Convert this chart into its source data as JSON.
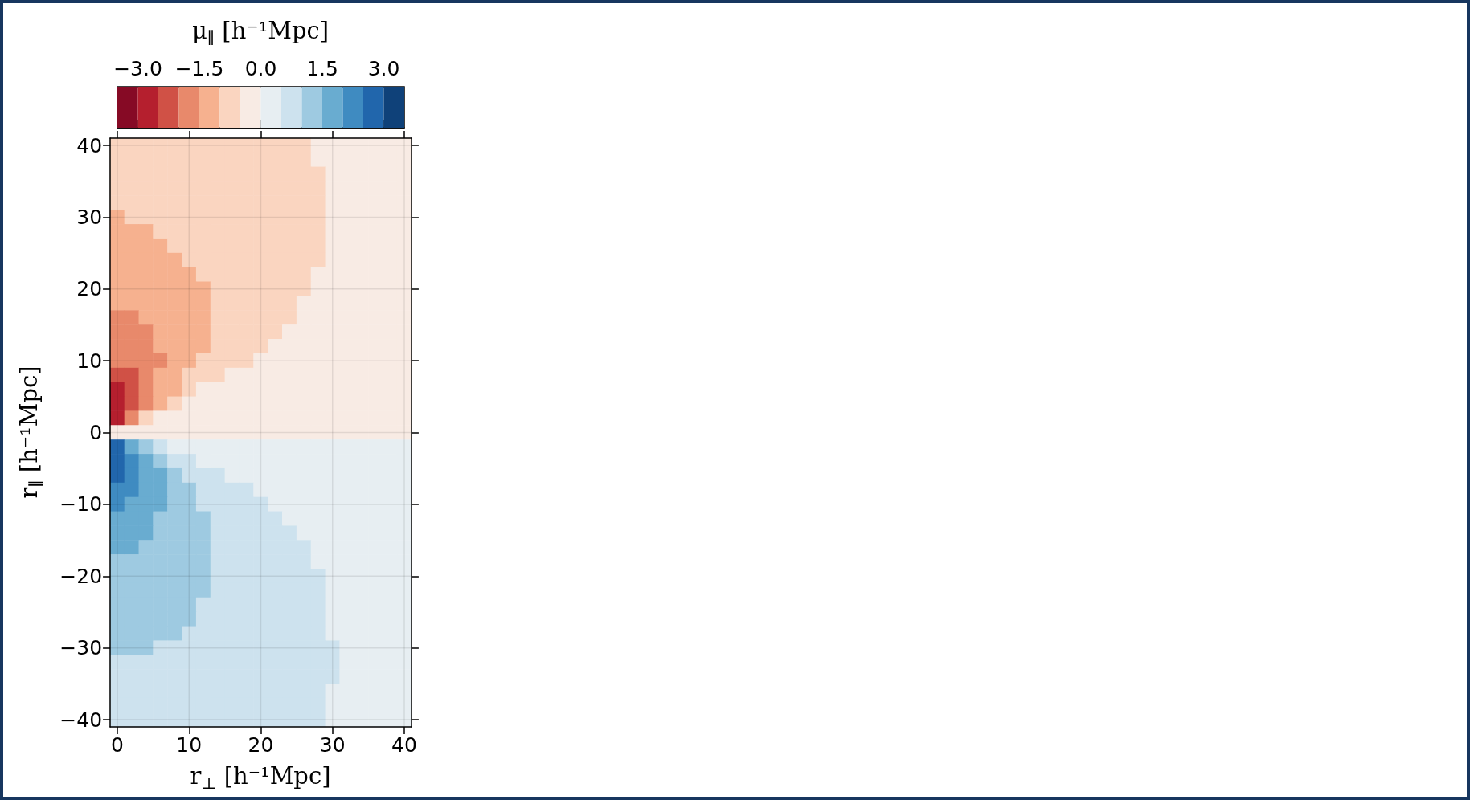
{
  "chart_data": {
    "type": "heatmap",
    "xlabel": "r$_{⊥}$ [h⁻¹Mpc]",
    "ylabel": "r$_{∥}$ [h⁻¹Mpc]",
    "clabel": "μ$_{∥}$ [h⁻¹Mpc]",
    "categories": [
      "0",
      null,
      null,
      null,
      null,
      "10",
      null,
      null,
      null,
      null,
      "20",
      null,
      null,
      null,
      null,
      "30",
      null,
      null,
      null,
      null,
      "40"
    ],
    "y_categories": [
      "40",
      null,
      null,
      null,
      null,
      "30",
      null,
      null,
      null,
      null,
      "20",
      null,
      null,
      null,
      null,
      "10",
      null,
      null,
      null,
      null,
      "0",
      null,
      null,
      null,
      null,
      "−10",
      null,
      null,
      null,
      null,
      "−20",
      null,
      null,
      null,
      null,
      "−30",
      null,
      null,
      null,
      null,
      "−40"
    ],
    "clim": [
      -3.5,
      3.5
    ],
    "cticks": [
      {
        "value": -3,
        "label": "−3.0"
      },
      {
        "value": -1.5,
        "label": "−1.5"
      },
      {
        "value": 0,
        "label": "0.0"
      },
      {
        "value": 1.5,
        "label": "1.5"
      },
      {
        "value": 3,
        "label": "3.0"
      }
    ],
    "colors": [
      "#860a25",
      "#b51f2e",
      "#d05146",
      "#e8896b",
      "#f6b18f",
      "#fad5c0",
      "#f8ebe4",
      "#e7eef2",
      "#cde2ee",
      "#9ecae1",
      "#69acd0",
      "#3f8bc1",
      "#2166ac",
      "#0f4179"
    ],
    "grid": true,
    "cells": [
      [
        -0.75,
        -0.75,
        -0.75,
        -0.75,
        -0.75,
        -0.75,
        -0.75,
        -0.75,
        -0.75,
        -0.75,
        -0.75,
        -0.75,
        -0.75,
        -0.75,
        -0.25,
        -0.25,
        -0.25,
        -0.25,
        -0.25,
        -0.25,
        -0.25
      ],
      [
        -0.75,
        -0.75,
        -0.75,
        -0.75,
        -0.75,
        -0.75,
        -0.75,
        -0.75,
        -0.75,
        -0.75,
        -0.75,
        -0.75,
        -0.75,
        -0.75,
        -0.25,
        -0.25,
        -0.25,
        -0.25,
        -0.25,
        -0.25,
        -0.25
      ],
      [
        -0.75,
        -0.75,
        -0.75,
        -0.75,
        -0.75,
        -0.75,
        -0.75,
        -0.75,
        -0.75,
        -0.75,
        -0.75,
        -0.75,
        -0.75,
        -0.75,
        -0.75,
        -0.25,
        -0.25,
        -0.25,
        -0.25,
        -0.25,
        -0.25
      ],
      [
        -0.75,
        -0.75,
        -0.75,
        -0.75,
        -0.75,
        -0.75,
        -0.75,
        -0.75,
        -0.75,
        -0.75,
        -0.75,
        -0.75,
        -0.75,
        -0.75,
        -0.75,
        -0.25,
        -0.25,
        -0.25,
        -0.25,
        -0.25,
        -0.25
      ],
      [
        -0.75,
        -0.75,
        -0.75,
        -0.75,
        -0.75,
        -0.75,
        -0.75,
        -0.75,
        -0.75,
        -0.75,
        -0.75,
        -0.75,
        -0.75,
        -0.75,
        -0.75,
        -0.25,
        -0.25,
        -0.25,
        -0.25,
        -0.25,
        -0.25
      ],
      [
        -1.25,
        -0.75,
        -0.75,
        -0.75,
        -0.75,
        -0.75,
        -0.75,
        -0.75,
        -0.75,
        -0.75,
        -0.75,
        -0.75,
        -0.75,
        -0.75,
        -0.75,
        -0.25,
        -0.25,
        -0.25,
        -0.25,
        -0.25,
        -0.25
      ],
      [
        -1.25,
        -1.25,
        -1.25,
        -0.75,
        -0.75,
        -0.75,
        -0.75,
        -0.75,
        -0.75,
        -0.75,
        -0.75,
        -0.75,
        -0.75,
        -0.75,
        -0.75,
        -0.25,
        -0.25,
        -0.25,
        -0.25,
        -0.25,
        -0.25
      ],
      [
        -1.25,
        -1.25,
        -1.25,
        -1.25,
        -0.75,
        -0.75,
        -0.75,
        -0.75,
        -0.75,
        -0.75,
        -0.75,
        -0.75,
        -0.75,
        -0.75,
        -0.75,
        -0.25,
        -0.25,
        -0.25,
        -0.25,
        -0.25,
        -0.25
      ],
      [
        -1.25,
        -1.25,
        -1.25,
        -1.25,
        -1.25,
        -0.75,
        -0.75,
        -0.75,
        -0.75,
        -0.75,
        -0.75,
        -0.75,
        -0.75,
        -0.75,
        -0.75,
        -0.25,
        -0.25,
        -0.25,
        -0.25,
        -0.25,
        -0.25
      ],
      [
        -1.25,
        -1.25,
        -1.25,
        -1.25,
        -1.25,
        -1.25,
        -0.75,
        -0.75,
        -0.75,
        -0.75,
        -0.75,
        -0.75,
        -0.75,
        -0.75,
        -0.25,
        -0.25,
        -0.25,
        -0.25,
        -0.25,
        -0.25,
        -0.25
      ],
      [
        -1.25,
        -1.25,
        -1.25,
        -1.25,
        -1.25,
        -1.25,
        -1.25,
        -0.75,
        -0.75,
        -0.75,
        -0.75,
        -0.75,
        -0.75,
        -0.75,
        -0.25,
        -0.25,
        -0.25,
        -0.25,
        -0.25,
        -0.25,
        -0.25
      ],
      [
        -1.25,
        -1.25,
        -1.25,
        -1.25,
        -1.25,
        -1.25,
        -1.25,
        -0.75,
        -0.75,
        -0.75,
        -0.75,
        -0.75,
        -0.75,
        -0.25,
        -0.25,
        -0.25,
        -0.25,
        -0.25,
        -0.25,
        -0.25,
        -0.25
      ],
      [
        -1.75,
        -1.75,
        -1.25,
        -1.25,
        -1.25,
        -1.25,
        -1.25,
        -0.75,
        -0.75,
        -0.75,
        -0.75,
        -0.75,
        -0.75,
        -0.25,
        -0.25,
        -0.25,
        -0.25,
        -0.25,
        -0.25,
        -0.25,
        -0.25
      ],
      [
        -1.75,
        -1.75,
        -1.75,
        -1.25,
        -1.25,
        -1.25,
        -1.25,
        -0.75,
        -0.75,
        -0.75,
        -0.75,
        -0.75,
        -0.25,
        -0.25,
        -0.25,
        -0.25,
        -0.25,
        -0.25,
        -0.25,
        -0.25,
        -0.25
      ],
      [
        -1.75,
        -1.75,
        -1.75,
        -1.25,
        -1.25,
        -1.25,
        -1.25,
        -0.75,
        -0.75,
        -0.75,
        -0.75,
        -0.25,
        -0.25,
        -0.25,
        -0.25,
        -0.25,
        -0.25,
        -0.25,
        -0.25,
        -0.25,
        -0.25
      ],
      [
        -1.75,
        -1.75,
        -1.75,
        -1.75,
        -1.25,
        -1.25,
        -0.75,
        -0.75,
        -0.75,
        -0.75,
        -0.25,
        -0.25,
        -0.25,
        -0.25,
        -0.25,
        -0.25,
        -0.25,
        -0.25,
        -0.25,
        -0.25,
        -0.25
      ],
      [
        -2.25,
        -2.25,
        -1.75,
        -1.25,
        -1.25,
        -0.75,
        -0.75,
        -0.75,
        -0.25,
        -0.25,
        -0.25,
        -0.25,
        -0.25,
        -0.25,
        -0.25,
        -0.25,
        -0.25,
        -0.25,
        -0.25,
        -0.25,
        -0.25
      ],
      [
        -2.75,
        -2.25,
        -1.75,
        -1.25,
        -1.25,
        -0.75,
        -0.25,
        -0.25,
        -0.25,
        -0.25,
        -0.25,
        -0.25,
        -0.25,
        -0.25,
        -0.25,
        -0.25,
        -0.25,
        -0.25,
        -0.25,
        -0.25,
        -0.25
      ],
      [
        -2.75,
        -2.25,
        -1.75,
        -1.25,
        -0.75,
        -0.25,
        -0.25,
        -0.25,
        -0.25,
        -0.25,
        -0.25,
        -0.25,
        -0.25,
        -0.25,
        -0.25,
        -0.25,
        -0.25,
        -0.25,
        -0.25,
        -0.25,
        -0.25
      ],
      [
        -2.75,
        -1.75,
        -0.75,
        -0.25,
        -0.25,
        -0.25,
        -0.25,
        -0.25,
        -0.25,
        -0.25,
        -0.25,
        -0.25,
        -0.25,
        -0.25,
        -0.25,
        -0.25,
        -0.25,
        -0.25,
        -0.25,
        -0.25,
        -0.25
      ],
      [
        -0.25,
        -0.25,
        -0.25,
        -0.25,
        -0.25,
        -0.25,
        -0.25,
        -0.25,
        -0.25,
        -0.25,
        -0.25,
        -0.25,
        -0.25,
        -0.25,
        -0.25,
        -0.25,
        -0.25,
        -0.25,
        -0.25,
        -0.25,
        -0.25
      ],
      [
        2.75,
        1.75,
        1.25,
        0.75,
        0.25,
        0.25,
        0.25,
        0.25,
        0.25,
        0.25,
        0.25,
        0.25,
        0.25,
        0.25,
        0.25,
        0.25,
        0.25,
        0.25,
        0.25,
        0.25,
        0.25
      ],
      [
        2.75,
        2.25,
        1.75,
        1.25,
        0.75,
        0.75,
        0.25,
        0.25,
        0.25,
        0.25,
        0.25,
        0.25,
        0.25,
        0.25,
        0.25,
        0.25,
        0.25,
        0.25,
        0.25,
        0.25,
        0.25
      ],
      [
        2.75,
        2.25,
        1.75,
        1.75,
        1.25,
        0.75,
        0.75,
        0.75,
        0.25,
        0.25,
        0.25,
        0.25,
        0.25,
        0.25,
        0.25,
        0.25,
        0.25,
        0.25,
        0.25,
        0.25,
        0.25
      ],
      [
        2.25,
        2.25,
        1.75,
        1.75,
        1.25,
        1.25,
        0.75,
        0.75,
        0.75,
        0.75,
        0.25,
        0.25,
        0.25,
        0.25,
        0.25,
        0.25,
        0.25,
        0.25,
        0.25,
        0.25,
        0.25
      ],
      [
        2.25,
        1.75,
        1.75,
        1.75,
        1.25,
        1.25,
        0.75,
        0.75,
        0.75,
        0.75,
        0.75,
        0.25,
        0.25,
        0.25,
        0.25,
        0.25,
        0.25,
        0.25,
        0.25,
        0.25,
        0.25
      ],
      [
        1.75,
        1.75,
        1.75,
        1.25,
        1.25,
        1.25,
        1.25,
        0.75,
        0.75,
        0.75,
        0.75,
        0.75,
        0.25,
        0.25,
        0.25,
        0.25,
        0.25,
        0.25,
        0.25,
        0.25,
        0.25
      ],
      [
        1.75,
        1.75,
        1.75,
        1.25,
        1.25,
        1.25,
        1.25,
        0.75,
        0.75,
        0.75,
        0.75,
        0.75,
        0.75,
        0.25,
        0.25,
        0.25,
        0.25,
        0.25,
        0.25,
        0.25,
        0.25
      ],
      [
        1.75,
        1.75,
        1.25,
        1.25,
        1.25,
        1.25,
        1.25,
        0.75,
        0.75,
        0.75,
        0.75,
        0.75,
        0.75,
        0.75,
        0.25,
        0.25,
        0.25,
        0.25,
        0.25,
        0.25,
        0.25
      ],
      [
        1.25,
        1.25,
        1.25,
        1.25,
        1.25,
        1.25,
        1.25,
        0.75,
        0.75,
        0.75,
        0.75,
        0.75,
        0.75,
        0.75,
        0.25,
        0.25,
        0.25,
        0.25,
        0.25,
        0.25,
        0.25
      ],
      [
        1.25,
        1.25,
        1.25,
        1.25,
        1.25,
        1.25,
        1.25,
        0.75,
        0.75,
        0.75,
        0.75,
        0.75,
        0.75,
        0.75,
        0.75,
        0.25,
        0.25,
        0.25,
        0.25,
        0.25,
        0.25
      ],
      [
        1.25,
        1.25,
        1.25,
        1.25,
        1.25,
        1.25,
        1.25,
        0.75,
        0.75,
        0.75,
        0.75,
        0.75,
        0.75,
        0.75,
        0.75,
        0.25,
        0.25,
        0.25,
        0.25,
        0.25,
        0.25
      ],
      [
        1.25,
        1.25,
        1.25,
        1.25,
        1.25,
        1.25,
        0.75,
        0.75,
        0.75,
        0.75,
        0.75,
        0.75,
        0.75,
        0.75,
        0.75,
        0.25,
        0.25,
        0.25,
        0.25,
        0.25,
        0.25
      ],
      [
        1.25,
        1.25,
        1.25,
        1.25,
        1.25,
        1.25,
        0.75,
        0.75,
        0.75,
        0.75,
        0.75,
        0.75,
        0.75,
        0.75,
        0.75,
        0.25,
        0.25,
        0.25,
        0.25,
        0.25,
        0.25
      ],
      [
        1.25,
        1.25,
        1.25,
        1.25,
        1.25,
        0.75,
        0.75,
        0.75,
        0.75,
        0.75,
        0.75,
        0.75,
        0.75,
        0.75,
        0.75,
        0.25,
        0.25,
        0.25,
        0.25,
        0.25,
        0.25
      ],
      [
        1.25,
        1.25,
        1.25,
        0.75,
        0.75,
        0.75,
        0.75,
        0.75,
        0.75,
        0.75,
        0.75,
        0.75,
        0.75,
        0.75,
        0.75,
        0.75,
        0.25,
        0.25,
        0.25,
        0.25,
        0.25
      ],
      [
        0.75,
        0.75,
        0.75,
        0.75,
        0.75,
        0.75,
        0.75,
        0.75,
        0.75,
        0.75,
        0.75,
        0.75,
        0.75,
        0.75,
        0.75,
        0.75,
        0.25,
        0.25,
        0.25,
        0.25,
        0.25
      ],
      [
        0.75,
        0.75,
        0.75,
        0.75,
        0.75,
        0.75,
        0.75,
        0.75,
        0.75,
        0.75,
        0.75,
        0.75,
        0.75,
        0.75,
        0.75,
        0.75,
        0.25,
        0.25,
        0.25,
        0.25,
        0.25
      ],
      [
        0.75,
        0.75,
        0.75,
        0.75,
        0.75,
        0.75,
        0.75,
        0.75,
        0.75,
        0.75,
        0.75,
        0.75,
        0.75,
        0.75,
        0.75,
        0.25,
        0.25,
        0.25,
        0.25,
        0.25,
        0.25
      ],
      [
        0.75,
        0.75,
        0.75,
        0.75,
        0.75,
        0.75,
        0.75,
        0.75,
        0.75,
        0.75,
        0.75,
        0.75,
        0.75,
        0.75,
        0.75,
        0.25,
        0.25,
        0.25,
        0.25,
        0.25,
        0.25
      ],
      [
        0.75,
        0.75,
        0.75,
        0.75,
        0.75,
        0.75,
        0.75,
        0.75,
        0.75,
        0.75,
        0.75,
        0.75,
        0.75,
        0.75,
        0.75,
        0.25,
        0.25,
        0.25,
        0.25,
        0.25,
        0.25
      ]
    ]
  }
}
